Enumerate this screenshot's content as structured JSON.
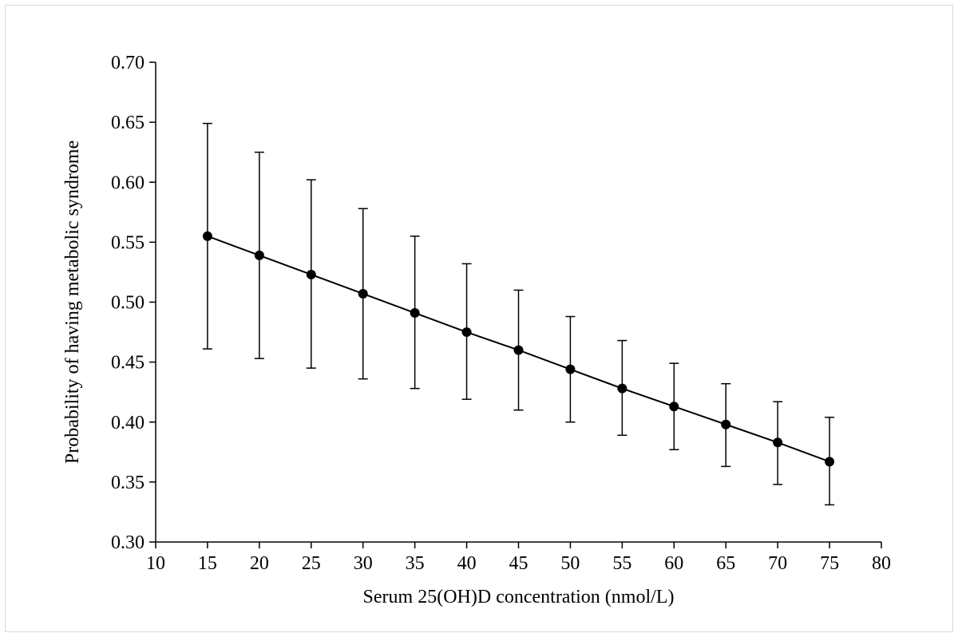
{
  "chart_data": {
    "type": "line",
    "title": "",
    "xlabel": "Serum 25(OH)D concentration  (nmol/L)",
    "ylabel": "Probability of having  metabolic syndrome",
    "xlim": [
      10,
      80
    ],
    "ylim": [
      0.3,
      0.7
    ],
    "xticks": [
      "10",
      "15",
      "20",
      "25",
      "30",
      "35",
      "40",
      "45",
      "50",
      "55",
      "60",
      "65",
      "70",
      "75",
      "80"
    ],
    "yticks": [
      "0.30",
      "0.35",
      "0.40",
      "0.45",
      "0.50",
      "0.55",
      "0.60",
      "0.65",
      "0.70"
    ],
    "grid": false,
    "legend": "none",
    "series": [
      {
        "x": [
          15,
          20,
          25,
          30,
          35,
          40,
          45,
          50,
          55,
          60,
          65,
          70,
          75
        ],
        "values": [
          0.555,
          0.539,
          0.523,
          0.507,
          0.491,
          0.475,
          0.46,
          0.444,
          0.428,
          0.413,
          0.398,
          0.383,
          0.367
        ],
        "lower": [
          0.461,
          0.453,
          0.445,
          0.436,
          0.428,
          0.419,
          0.41,
          0.4,
          0.389,
          0.377,
          0.363,
          0.348,
          0.331
        ],
        "upper": [
          0.649,
          0.625,
          0.602,
          0.578,
          0.555,
          0.532,
          0.51,
          0.488,
          0.468,
          0.449,
          0.432,
          0.417,
          0.404
        ]
      }
    ],
    "colors": {
      "line": "#000000",
      "marker": "#000000",
      "axis": "#000000"
    }
  }
}
